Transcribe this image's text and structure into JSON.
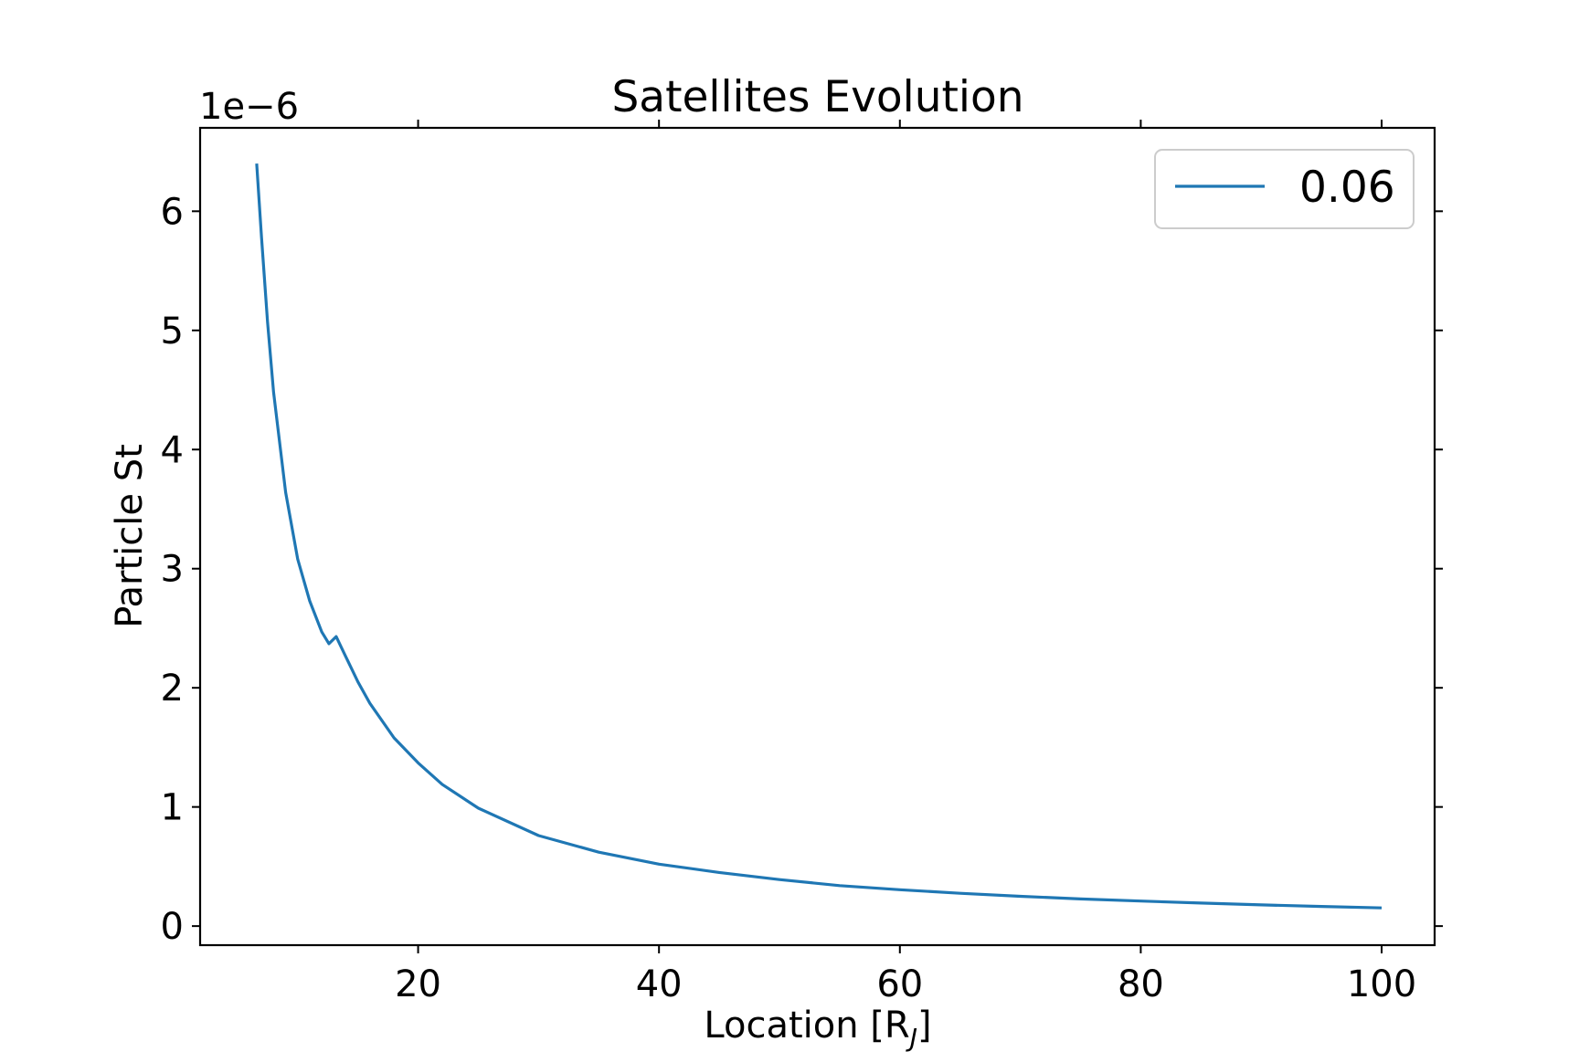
{
  "chart_data": {
    "type": "line",
    "title": "Satellites Evolution",
    "xlabel": "Location [R",
    "xlabel_sub": "J",
    "xlabel_suffix": "]",
    "ylabel": "Particle St",
    "y_offset_label": "1e−6",
    "xlim": [
      1.9,
      104.4
    ],
    "ylim": [
      -0.16,
      6.7
    ],
    "y_scale_factor": "1e-6",
    "x_ticks": [
      20,
      40,
      60,
      80,
      100
    ],
    "x_tick_labels": [
      "20",
      "40",
      "60",
      "80",
      "100"
    ],
    "y_ticks": [
      0,
      1,
      2,
      3,
      4,
      5,
      6
    ],
    "y_tick_labels": [
      "0",
      "1",
      "2",
      "3",
      "4",
      "5",
      "6"
    ],
    "grid": false,
    "legend_position": "top-right",
    "series": [
      {
        "name": "0.06",
        "color": "#1f77b4",
        "x": [
          6.6,
          7,
          7.5,
          8,
          9,
          10,
          11,
          12,
          12.6,
          13.2,
          14,
          15,
          16,
          18,
          20,
          22,
          25,
          30,
          35,
          40,
          45,
          50,
          55,
          60,
          65,
          70,
          75,
          80,
          85,
          90,
          95,
          100
        ],
        "y": [
          6.4,
          5.78,
          5.07,
          4.48,
          3.64,
          3.08,
          2.73,
          2.47,
          2.37,
          2.43,
          2.26,
          2.05,
          1.87,
          1.58,
          1.37,
          1.19,
          0.99,
          0.76,
          0.62,
          0.52,
          0.45,
          0.39,
          0.34,
          0.305,
          0.275,
          0.25,
          0.228,
          0.21,
          0.193,
          0.178,
          0.165,
          0.153
        ]
      }
    ]
  }
}
